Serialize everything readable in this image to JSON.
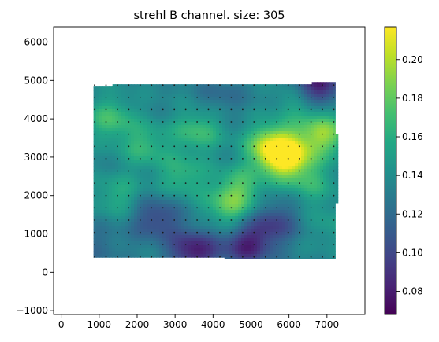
{
  "chart_data": {
    "type": "heatmap",
    "title": "strehl B channel. size: 305",
    "xlabel": "",
    "ylabel": "",
    "xlim": [
      -200,
      8000
    ],
    "ylim": [
      -1100,
      6400
    ],
    "x_ticks": [
      "0",
      "1000",
      "2000",
      "3000",
      "4000",
      "5000",
      "6000",
      "7000"
    ],
    "x_tick_values": [
      0,
      1000,
      2000,
      3000,
      4000,
      5000,
      6000,
      7000
    ],
    "y_ticks": [
      "−1000",
      "0",
      "1000",
      "2000",
      "3000",
      "4000",
      "5000",
      "6000"
    ],
    "y_tick_values": [
      -1000,
      0,
      1000,
      2000,
      3000,
      4000,
      5000,
      6000
    ],
    "colormap": "viridis",
    "colorbar": {
      "range": [
        0.068,
        0.217
      ],
      "ticks": [
        "0.08",
        "0.10",
        "0.12",
        "0.14",
        "0.16",
        "0.18",
        "0.20"
      ],
      "tick_values": [
        0.08,
        0.1,
        0.12,
        0.14,
        0.16,
        0.18,
        0.2
      ]
    },
    "field_extent": {
      "x": [
        850,
        7300
      ],
      "y": [
        380,
        4900
      ]
    },
    "sample_grid": {
      "x_start": 880,
      "x_step": 300,
      "y_start": 400,
      "y_step": 320
    },
    "grid": false,
    "hotspots": [
      {
        "x": 5950,
        "y": 3000,
        "value": 0.215
      },
      {
        "x": 5500,
        "y": 3300,
        "value": 0.19
      },
      {
        "x": 6900,
        "y": 3600,
        "value": 0.19
      },
      {
        "x": 4700,
        "y": 2200,
        "value": 0.17
      },
      {
        "x": 4400,
        "y": 1650,
        "value": 0.17
      },
      {
        "x": 3600,
        "y": 3700,
        "value": 0.17
      },
      {
        "x": 3200,
        "y": 2500,
        "value": 0.165
      },
      {
        "x": 2200,
        "y": 3300,
        "value": 0.165
      },
      {
        "x": 1300,
        "y": 4000,
        "value": 0.17
      },
      {
        "x": 1500,
        "y": 2000,
        "value": 0.16
      },
      {
        "x": 6600,
        "y": 2300,
        "value": 0.16
      },
      {
        "x": 6300,
        "y": 4500,
        "value": 0.165
      },
      {
        "x": 4900,
        "y": 700,
        "value": 0.085
      },
      {
        "x": 3500,
        "y": 550,
        "value": 0.08
      },
      {
        "x": 6700,
        "y": 4850,
        "value": 0.07
      },
      {
        "x": 2500,
        "y": 1400,
        "value": 0.1
      },
      {
        "x": 5600,
        "y": 1300,
        "value": 0.1
      },
      {
        "x": 4200,
        "y": 4600,
        "value": 0.12
      },
      {
        "x": 1000,
        "y": 700,
        "value": 0.12
      },
      {
        "x": 7100,
        "y": 1200,
        "value": 0.15
      }
    ]
  }
}
